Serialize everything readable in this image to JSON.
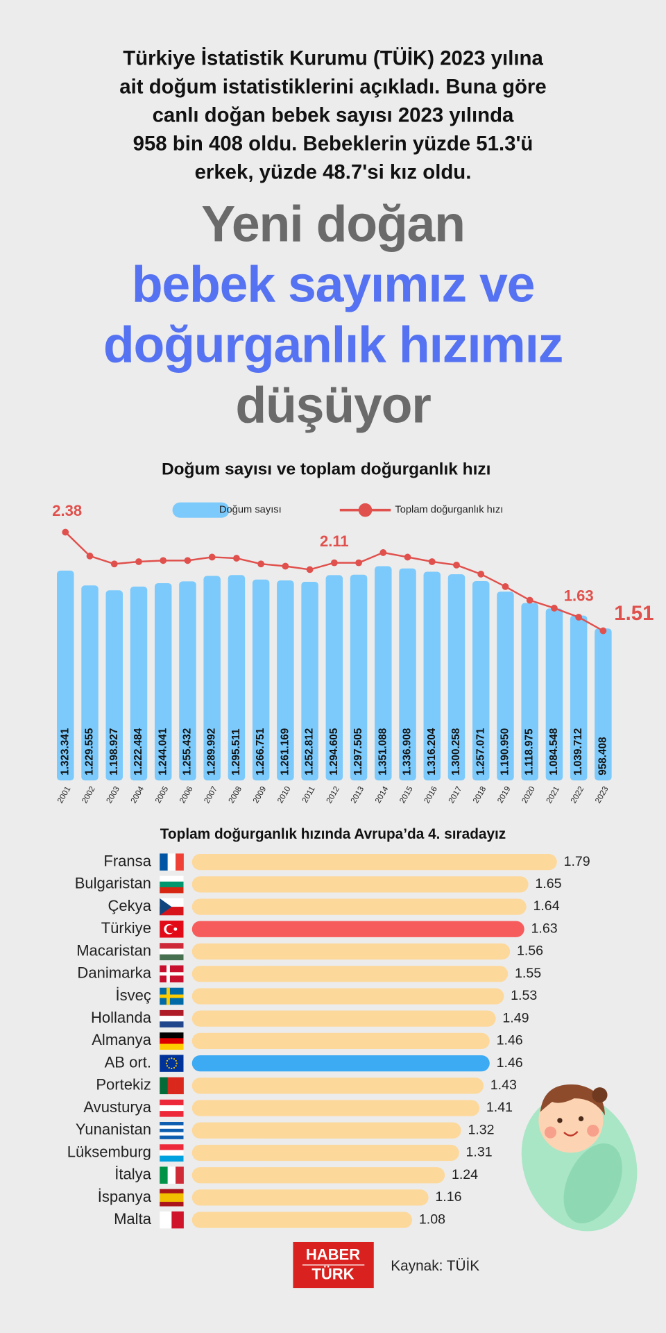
{
  "header": {
    "intro_lines": [
      "Türkiye İstatistik Kurumu (TÜİK) 2023 yılına",
      "ait doğum istatistiklerini açıkladı. Buna göre",
      "canlı doğan bebek sayısı 2023 yılında",
      "958 bin 408 oldu. Bebeklerin yüzde 51.3'ü",
      "erkek, yüzde 48.7'si kız oldu."
    ]
  },
  "headline": {
    "lines": [
      {
        "text": "Yeni doğan",
        "color": "#6a6a6a"
      },
      {
        "text": "bebek sayımız ve",
        "color": "#5572f2"
      },
      {
        "text": "doğurganlık hızımız",
        "color": "#5572f2"
      },
      {
        "text": "düşüyor",
        "color": "#6a6a6a"
      }
    ]
  },
  "chart_data": [
    {
      "type": "bar_line",
      "title": "Doğum sayısı ve toplam doğurganlık hızı",
      "categories": [
        "2001",
        "2002",
        "2003",
        "2004",
        "2005",
        "2006",
        "2007",
        "2008",
        "2009",
        "2010",
        "2011",
        "2012",
        "2013",
        "2014",
        "2015",
        "2016",
        "2017",
        "2018",
        "2019",
        "2020",
        "2021",
        "2022",
        "2023"
      ],
      "series": [
        {
          "name": "Doğum sayısı",
          "type": "bar",
          "color": "#7ccafb",
          "values": [
            1323341,
            1229555,
            1198927,
            1222484,
            1244041,
            1255432,
            1289992,
            1295511,
            1266751,
            1261169,
            1252812,
            1294605,
            1297505,
            1351088,
            1336908,
            1316204,
            1300258,
            1257071,
            1190950,
            1118975,
            1084548,
            1039712,
            958408
          ],
          "value_labels": [
            "1.323.341",
            "1.229.555",
            "1.198.927",
            "1.222.484",
            "1.244.041",
            "1.255.432",
            "1.289.992",
            "1.295.511",
            "1.266.751",
            "1.261.169",
            "1.252.812",
            "1.294.605",
            "1.297.505",
            "1.351.088",
            "1.336.908",
            "1.316.204",
            "1.300.258",
            "1.257.071",
            "1.190.950",
            "1.118.975",
            "1.084.548",
            "1.039.712",
            "958.408"
          ]
        },
        {
          "name": "Toplam doğurganlık hızı",
          "type": "line",
          "color": "#e0504c",
          "values": [
            2.38,
            2.17,
            2.1,
            2.12,
            2.13,
            2.13,
            2.16,
            2.15,
            2.1,
            2.08,
            2.05,
            2.11,
            2.11,
            2.2,
            2.16,
            2.12,
            2.09,
            2.01,
            1.9,
            1.78,
            1.71,
            1.63,
            1.51
          ],
          "value_labels": [
            "2.38",
            null,
            null,
            null,
            null,
            null,
            null,
            null,
            null,
            null,
            null,
            "2.11",
            null,
            null,
            null,
            null,
            null,
            null,
            null,
            null,
            null,
            "1.63",
            "1.51"
          ]
        }
      ]
    },
    {
      "type": "hbar",
      "title": "Toplam doğurganlık hızında Avrupa’da 4. sıradayız",
      "categories": [
        "Fransa",
        "Bulgaristan",
        "Çekya",
        "Türkiye",
        "Macaristan",
        "Danimarka",
        "İsveç",
        "Hollanda",
        "Almanya",
        "AB ort.",
        "Portekiz",
        "Avusturya",
        "Yunanistan",
        "Lüksemburg",
        "İtalya",
        "İspanya",
        "Malta"
      ],
      "values": [
        1.79,
        1.65,
        1.64,
        1.63,
        1.56,
        1.55,
        1.53,
        1.49,
        1.46,
        1.46,
        1.43,
        1.41,
        1.32,
        1.31,
        1.24,
        1.16,
        1.08
      ],
      "colors": [
        "#fdd89b",
        "#fdd89b",
        "#fdd89b",
        "#f75c5c",
        "#fdd89b",
        "#fdd89b",
        "#fdd89b",
        "#fdd89b",
        "#fdd89b",
        "#3daaf4",
        "#fdd89b",
        "#fdd89b",
        "#fdd89b",
        "#fdd89b",
        "#fdd89b",
        "#fdd89b",
        "#fdd89b"
      ]
    }
  ],
  "footer": {
    "logo": [
      "HABER",
      "TÜRK"
    ],
    "source": "Kaynak: TÜİK"
  }
}
